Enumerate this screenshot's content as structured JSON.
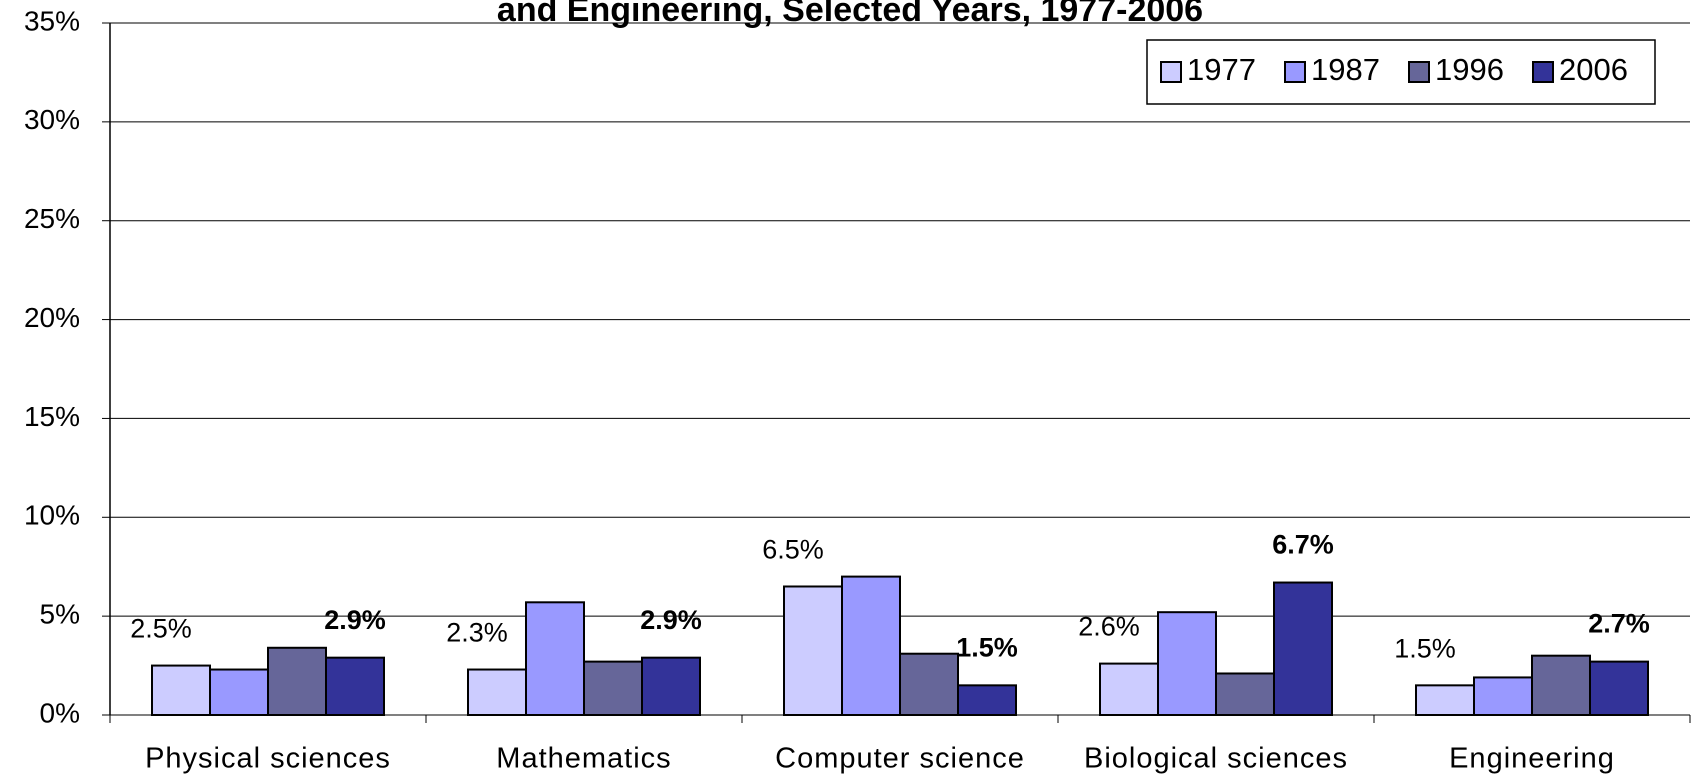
{
  "chart_data": {
    "type": "bar",
    "title": "and Engineering, Selected Years, 1977-2006",
    "categories": [
      "Physical sciences",
      "Mathematics",
      "Computer science",
      "Biological sciences",
      "Engineering"
    ],
    "series": [
      {
        "name": "1977",
        "color": "#ccccff",
        "values": [
          2.5,
          2.3,
          6.5,
          2.6,
          1.5
        ],
        "value_labels": [
          "2.5%",
          "2.3%",
          "6.5%",
          "2.6%",
          "1.5%"
        ]
      },
      {
        "name": "1987",
        "color": "#9999ff",
        "values": [
          2.3,
          5.7,
          7.0,
          5.2,
          1.9
        ]
      },
      {
        "name": "1996",
        "color": "#666699",
        "values": [
          3.4,
          2.7,
          3.1,
          2.1,
          3.0
        ]
      },
      {
        "name": "2006",
        "color": "#333399",
        "values": [
          2.9,
          2.9,
          1.5,
          6.7,
          2.7
        ],
        "value_labels": [
          "2.9%",
          "2.9%",
          "1.5%",
          "6.7%",
          "2.7%"
        ]
      }
    ],
    "ylim": [
      0,
      35
    ],
    "yticks": [
      {
        "value": 0,
        "label": "0%"
      },
      {
        "value": 5,
        "label": "5%"
      },
      {
        "value": 10,
        "label": "10%"
      },
      {
        "value": 15,
        "label": "15%"
      },
      {
        "value": 20,
        "label": "20%"
      },
      {
        "value": 25,
        "label": "25%"
      },
      {
        "value": 30,
        "label": "30%"
      },
      {
        "value": 35,
        "label": "35%"
      }
    ],
    "grid": true,
    "legend": "top-right"
  }
}
